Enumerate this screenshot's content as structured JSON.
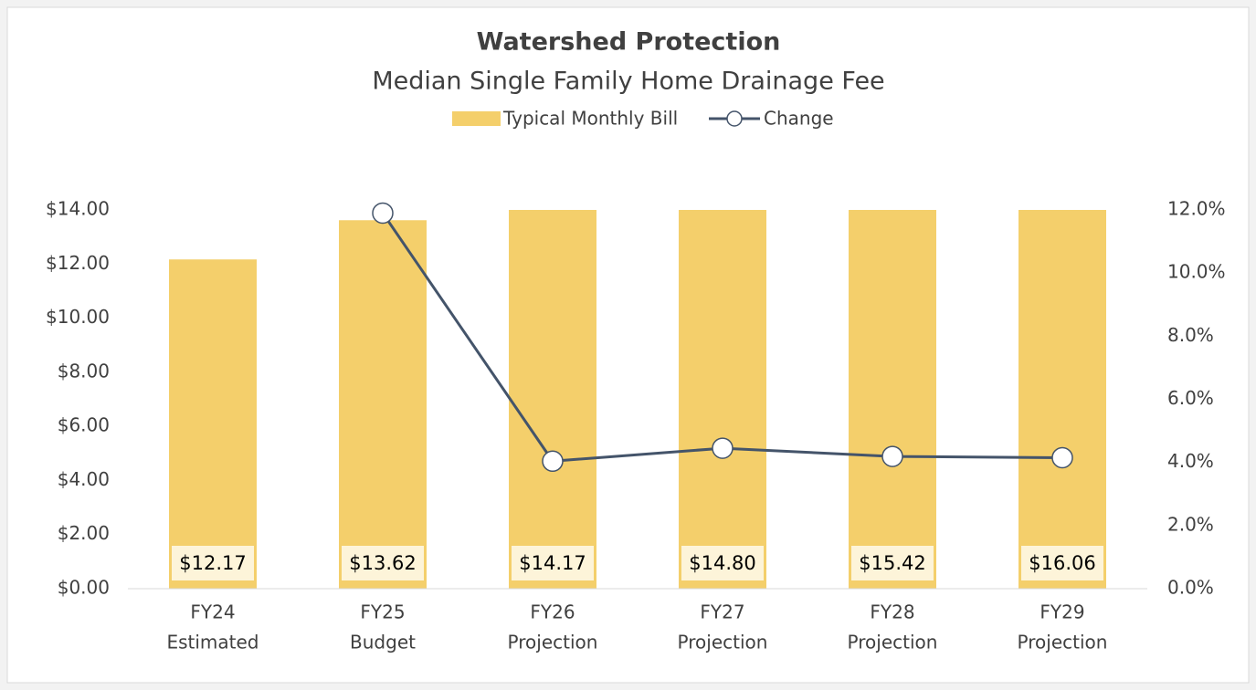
{
  "chart_data": {
    "type": "bar_line",
    "title": "Watershed Protection",
    "subtitle": "Median Single Family Home Drainage Fee",
    "categories": [
      [
        "FY24",
        "Estimated"
      ],
      [
        "FY25",
        "Budget"
      ],
      [
        "FY26",
        "Projection"
      ],
      [
        "FY27",
        "Projection"
      ],
      [
        "FY28",
        "Projection"
      ],
      [
        "FY29",
        "Projection"
      ]
    ],
    "series": [
      {
        "name": "Typical Monthly Bill",
        "type": "bar",
        "color": "#f4cf6b",
        "values": [
          12.17,
          13.62,
          14.17,
          14.8,
          15.42,
          16.06
        ],
        "value_labels": [
          "$12.17",
          "$13.62",
          "$14.17",
          "$14.80",
          "$15.42",
          "$16.06"
        ]
      },
      {
        "name": "Change",
        "type": "line",
        "axis": "y2",
        "color": "#44546a",
        "values": [
          null,
          11.9,
          4.04,
          4.45,
          4.19,
          4.15
        ]
      }
    ],
    "ylim": [
      0,
      14
    ],
    "yticks": [
      {
        "value": 0,
        "label": "$0.00"
      },
      {
        "value": 2,
        "label": "$2.00"
      },
      {
        "value": 4,
        "label": "$4.00"
      },
      {
        "value": 6,
        "label": "$6.00"
      },
      {
        "value": 8,
        "label": "$8.00"
      },
      {
        "value": 10,
        "label": "$10.00"
      },
      {
        "value": 12,
        "label": "$12.00"
      },
      {
        "value": 14,
        "label": "$14.00"
      }
    ],
    "y2lim": [
      0,
      12
    ],
    "y2ticks": [
      {
        "value": 0,
        "label": "0.0%"
      },
      {
        "value": 2,
        "label": "2.0%"
      },
      {
        "value": 4,
        "label": "4.0%"
      },
      {
        "value": 6,
        "label": "6.0%"
      },
      {
        "value": 8,
        "label": "8.0%"
      },
      {
        "value": 10,
        "label": "10.0%"
      },
      {
        "value": 12,
        "label": "12.0%"
      }
    ],
    "legend": "top"
  }
}
